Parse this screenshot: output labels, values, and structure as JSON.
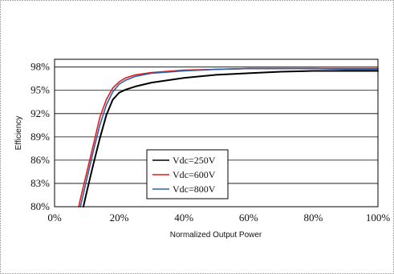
{
  "chart_data": {
    "type": "line",
    "xlabel": "Normalized Output Power",
    "ylabel": "Efficiency",
    "xlim": [
      0,
      100
    ],
    "ylim": [
      80,
      99
    ],
    "x_ticks": [
      0,
      20,
      40,
      60,
      80,
      100
    ],
    "y_ticks": [
      80,
      83,
      86,
      89,
      92,
      95,
      98
    ],
    "x_tick_labels": [
      "0%",
      "20%",
      "40%",
      "60%",
      "80%",
      "100%"
    ],
    "y_tick_labels": [
      "80%",
      "83%",
      "86%",
      "89%",
      "92%",
      "95%",
      "98%"
    ],
    "grid": "horizontal",
    "legend_position": "center-left",
    "series": [
      {
        "name": "Vdc=250V",
        "color": "#000000",
        "x": [
          8.9,
          10,
          12,
          14,
          16,
          18,
          20,
          22,
          25,
          30,
          40,
          50,
          60,
          70,
          80,
          90,
          100
        ],
        "y": [
          80,
          82,
          85.5,
          88.8,
          91.8,
          93.8,
          94.7,
          95.1,
          95.5,
          96.0,
          96.6,
          97.0,
          97.2,
          97.4,
          97.5,
          97.5,
          97.5
        ]
      },
      {
        "name": "Vdc=600V",
        "color": "#e31a1c",
        "x": [
          7.5,
          8,
          10,
          12,
          14,
          16,
          18,
          20,
          22,
          25,
          30,
          40,
          50,
          60,
          70,
          80,
          90,
          100
        ],
        "y": [
          80,
          81,
          84.5,
          88,
          91.5,
          93.8,
          95.3,
          96.1,
          96.6,
          97.0,
          97.3,
          97.6,
          97.7,
          97.8,
          97.8,
          97.8,
          97.8,
          97.8
        ]
      },
      {
        "name": "Vdc=800V",
        "color": "#2f5fa8",
        "x": [
          8,
          10,
          12,
          14,
          16,
          18,
          20,
          22,
          25,
          30,
          40,
          50,
          60,
          70,
          80,
          90,
          100
        ],
        "y": [
          80,
          83.6,
          87.2,
          90.5,
          93.1,
          94.8,
          95.8,
          96.3,
          96.8,
          97.2,
          97.5,
          97.7,
          97.8,
          97.8,
          97.8,
          97.7,
          97.7
        ]
      }
    ]
  }
}
